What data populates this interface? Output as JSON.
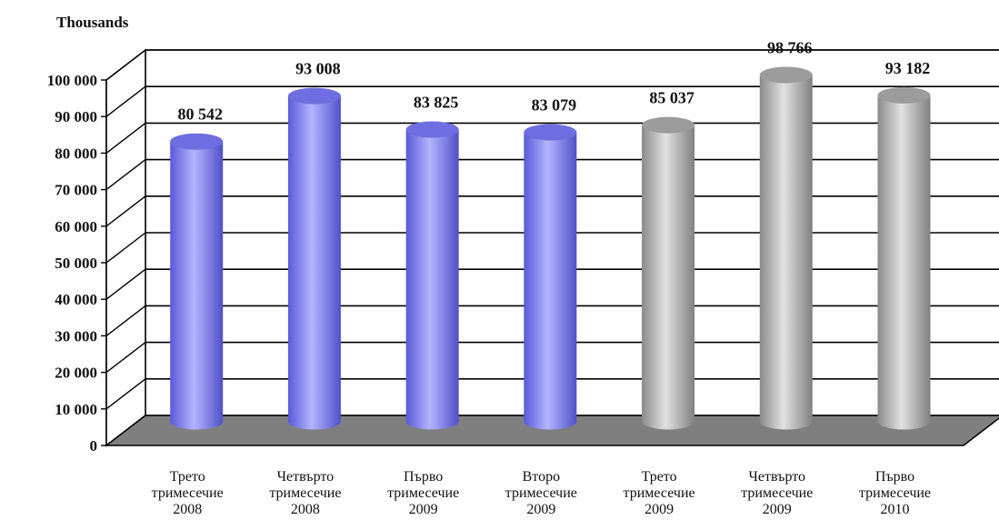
{
  "chart_data": {
    "type": "bar",
    "title": "",
    "ylabel": "Thousands",
    "xlabel": "",
    "ylim": [
      0,
      100000
    ],
    "y_ticks": [
      "0",
      "10 000",
      "20 000",
      "30 000",
      "40 000",
      "50 000",
      "60 000",
      "70 000",
      "80 000",
      "90 000",
      "100 000"
    ],
    "y_tick_values": [
      0,
      10000,
      20000,
      30000,
      40000,
      50000,
      60000,
      70000,
      80000,
      90000,
      100000
    ],
    "categories": [
      [
        "Трето",
        "тримесечие",
        "2008"
      ],
      [
        "Четвърто",
        "тримесечие",
        "2008"
      ],
      [
        "Първо",
        "тримесечие",
        "2009"
      ],
      [
        "Второ",
        "тримесечие",
        "2009"
      ],
      [
        "Трето",
        "тримесечие",
        "2009"
      ],
      [
        "Четвърто",
        "тримесечие",
        "2009"
      ],
      [
        "Първо",
        "тримесечие",
        "2010"
      ]
    ],
    "values": [
      80542,
      93008,
      83825,
      83079,
      85037,
      98766,
      93182
    ],
    "value_labels": [
      "80 542",
      "93 008",
      "83 825",
      "83 079",
      "85 037",
      "98 766",
      "93 182"
    ],
    "bar_colors": [
      "#8c8cf0",
      "#8c8cf0",
      "#8c8cf0",
      "#8c8cf0",
      "#b4b4b4",
      "#b4b4b4",
      "#b4b4b4"
    ],
    "shape": "cylinder-3d",
    "grid": true,
    "legend": "none"
  },
  "colors": {
    "blue_bar": "#8c8cf0",
    "gray_bar": "#b4b4b4",
    "floor": "#7f7f7f",
    "wall": "#ffffff"
  }
}
